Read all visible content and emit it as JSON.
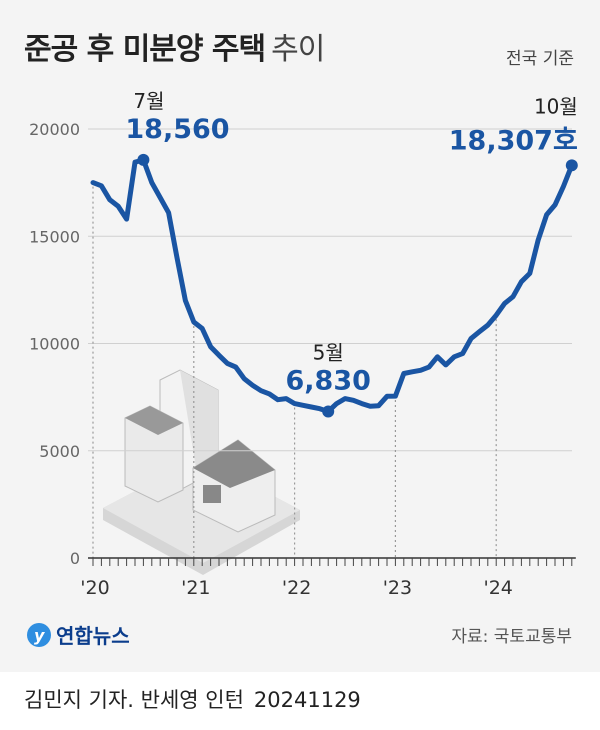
{
  "header": {
    "title_bold": "준공 후 미분양 주택",
    "title_light": "추이",
    "basis": "전국 기준"
  },
  "footer": {
    "logo": "연합뉴스",
    "source": "자료: 국토교통부",
    "credit": "김민지 기자. 반세영 인턴",
    "date": "20241129"
  },
  "colors": {
    "line": "#1a55a3",
    "grid": "#d0d0d0",
    "background": "#f4f4f4"
  },
  "chart_data": {
    "type": "line",
    "title": "준공 후 미분양 주택 추이",
    "unit": "호",
    "ylim": [
      0,
      20000
    ],
    "yticks": [
      0,
      5000,
      10000,
      15000,
      20000
    ],
    "xtick_labels": [
      "'20",
      "'21",
      "'22",
      "'23",
      "'24"
    ],
    "x_start": "2020-01",
    "x_end": "2024-10",
    "frequency": "monthly",
    "grid": true,
    "series": [
      {
        "values": [
          17500,
          17350,
          16700,
          16400,
          15800,
          18450,
          18560,
          17500,
          16800,
          16100,
          14000,
          12000,
          11000,
          10700,
          9850,
          9450,
          9070,
          8900,
          8360,
          8050,
          7800,
          7650,
          7380,
          7430,
          7200,
          7120,
          7040,
          6960,
          6830,
          7200,
          7430,
          7350,
          7200,
          7070,
          7100,
          7540,
          7550,
          8600,
          8680,
          8750,
          8900,
          9380,
          9000,
          9380,
          9530,
          10230,
          10550,
          10860,
          11320,
          11870,
          12180,
          12880,
          13270,
          14830,
          16000,
          16460,
          17320,
          18307
        ]
      }
    ],
    "annotations": [
      {
        "month_label": "7월",
        "value_label": "18,560",
        "index": 6
      },
      {
        "month_label": "5월",
        "value_label": "6,830",
        "index": 28
      },
      {
        "month_label": "10월",
        "value_label": "18,307호",
        "index": 57
      }
    ]
  }
}
